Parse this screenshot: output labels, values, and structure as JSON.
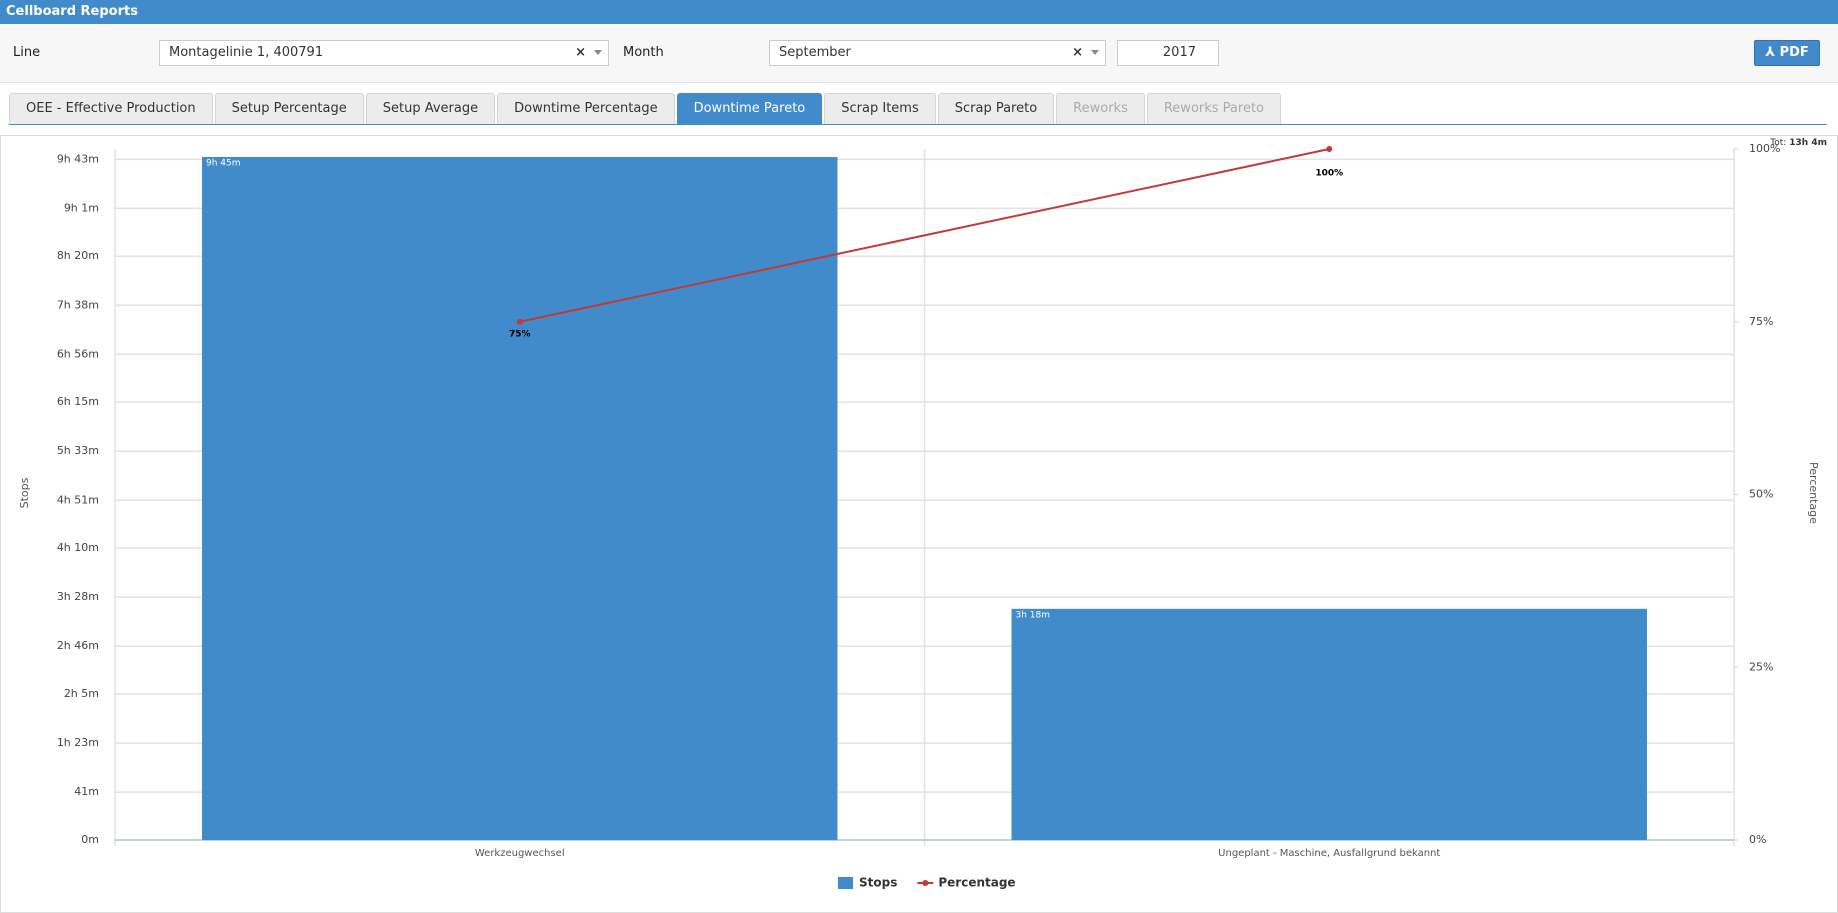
{
  "header": {
    "title": "Cellboard Reports"
  },
  "filters": {
    "line_label": "Line",
    "line_value": "Montagelinie 1, 400791",
    "month_label": "Month",
    "month_value": "September",
    "year_value": "2017",
    "pdf_button": "PDF"
  },
  "tabs": {
    "items": [
      "OEE - Effective Production",
      "Setup Percentage",
      "Setup Average",
      "Downtime Percentage",
      "Downtime Pareto",
      "Scrap Items",
      "Scrap Pareto",
      "Reworks",
      "Reworks Pareto"
    ],
    "active": 4,
    "disabled": [
      7,
      8
    ]
  },
  "chart_data": {
    "type": "bar-line",
    "annotation": {
      "label": "Tot:",
      "value": "13h 4m"
    },
    "y_label": "Stops",
    "y2_label": "Percentage",
    "categories": [
      "Werkzeugwechsel",
      "Ungeplant - Maschine, Ausfallgrund bekannt"
    ],
    "series": [
      {
        "name": "Stops",
        "type": "bar",
        "color": "#428bca",
        "values": [
          585,
          198
        ],
        "value_labels": [
          "9h 45m",
          "3h 18m"
        ]
      },
      {
        "name": "Percentage",
        "type": "line",
        "axis": "y2",
        "color": "#c0393b",
        "values": [
          75,
          100
        ],
        "value_labels": [
          "75%",
          "100%"
        ]
      }
    ],
    "ylim": [
      0,
      585
    ],
    "yticks": [
      {
        "value": 0,
        "label": "0m"
      },
      {
        "value": 41,
        "label": "41m"
      },
      {
        "value": 83,
        "label": "1h 23m"
      },
      {
        "value": 125,
        "label": "2h 5m"
      },
      {
        "value": 166,
        "label": "2h 46m"
      },
      {
        "value": 208,
        "label": "3h 28m"
      },
      {
        "value": 250,
        "label": "4h 10m"
      },
      {
        "value": 291,
        "label": "4h 51m"
      },
      {
        "value": 333,
        "label": "5h 33m"
      },
      {
        "value": 375,
        "label": "6h 15m"
      },
      {
        "value": 416,
        "label": "6h 56m"
      },
      {
        "value": 458,
        "label": "7h 38m"
      },
      {
        "value": 500,
        "label": "8h 20m"
      },
      {
        "value": 541,
        "label": "9h 1m"
      },
      {
        "value": 583,
        "label": "9h 43m"
      }
    ],
    "y2lim": [
      0,
      100
    ],
    "y2ticks": [
      {
        "value": 0,
        "label": "0%"
      },
      {
        "value": 25,
        "label": "25%"
      },
      {
        "value": 50,
        "label": "50%"
      },
      {
        "value": 75,
        "label": "75%"
      },
      {
        "value": 100,
        "label": "100%"
      }
    ],
    "grid": true,
    "legend": "bottom"
  }
}
